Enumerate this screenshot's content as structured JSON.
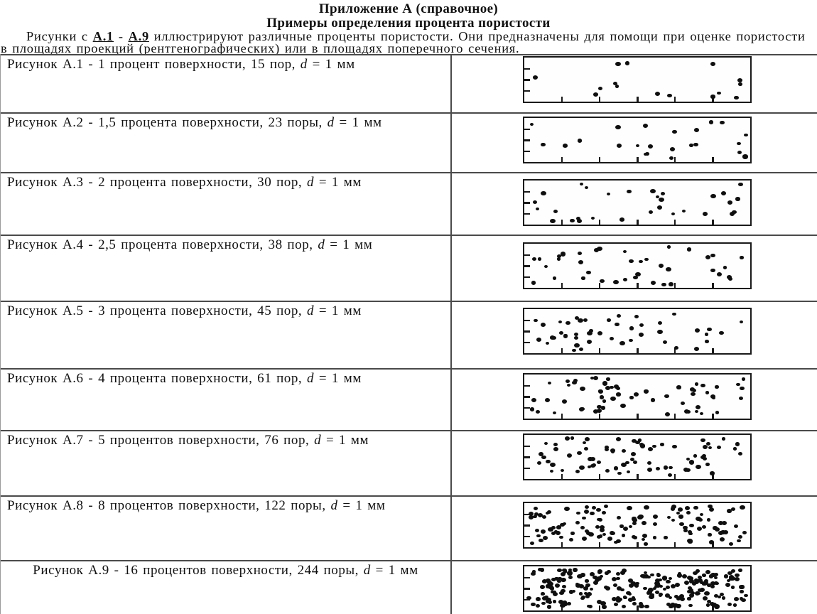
{
  "colors": {
    "ink": "#111111",
    "line": "#4a4a4a"
  },
  "header": {
    "line1": "Приложение А  (справочное)",
    "line2": "Примеры определения процента пористости"
  },
  "intro": {
    "part1": "Рисунки с ",
    "ref1": "А.1",
    "sep": " - ",
    "ref2": "А.9",
    "part3": " иллюстрируют различные проценты пористости. Они предназначены для помощи при оценке пористости в площадях проекций (рентгенографических) или в площадях поперечного сечения."
  },
  "table": {
    "rows": [
      {
        "label": "Рисунок А.1 - 1 процент поверхности, 15 пор, ",
        "d": "d",
        "rest": " = 1 мм",
        "pores": 15
      },
      {
        "label": "Рисунок А.2 - 1,5 процента поверхности, 23 поры, ",
        "d": "d",
        "rest": " = 1 мм",
        "pores": 23
      },
      {
        "label": "Рисунок А.3 - 2 процента поверхности, 30 пор, ",
        "d": "d",
        "rest": " = 1 мм",
        "pores": 30
      },
      {
        "label": "Рисунок А.4 - 2,5 процента поверхности, 38 пор, ",
        "d": "d",
        "rest": " = 1 мм",
        "pores": 38
      },
      {
        "label": "Рисунок А.5 - 3 процента поверхности, 45 пор, ",
        "d": "d",
        "rest": " = 1 мм",
        "pores": 45
      },
      {
        "label": "Рисунок А.6 - 4 процента поверхности, 61 пор, ",
        "d": "d",
        "rest": " = 1 мм",
        "pores": 61
      },
      {
        "label": "Рисунок А.7 - 5 процентов поверхности, 76 пор, ",
        "d": "d",
        "rest": " = 1 мм",
        "pores": 76
      },
      {
        "label": "Рисунок А.8 - 8 процентов поверхности, 122 поры, ",
        "d": "d",
        "rest": " = 1 мм",
        "pores": 122
      },
      {
        "label": "Рисунок А.9 - 16 процентов поверхности, 244 поры, ",
        "d": "d",
        "rest": " = 1 мм",
        "pores": 244
      }
    ]
  }
}
